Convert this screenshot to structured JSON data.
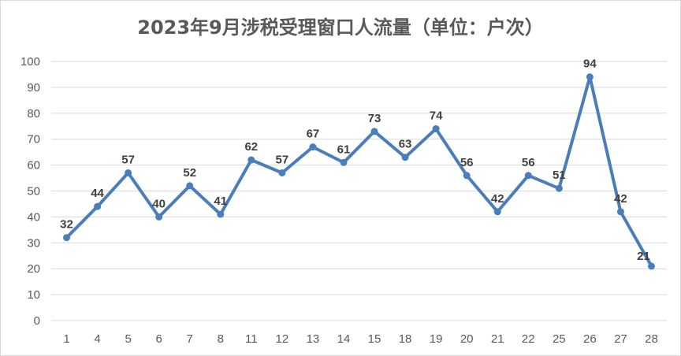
{
  "chart_data": {
    "type": "line",
    "title": "2023年9月涉税受理窗口人流量（单位：户次）",
    "xlabel": "",
    "ylabel": "",
    "categories": [
      "1",
      "4",
      "5",
      "6",
      "7",
      "8",
      "11",
      "12",
      "13",
      "14",
      "15",
      "18",
      "19",
      "20",
      "21",
      "22",
      "25",
      "26",
      "27",
      "28"
    ],
    "series": [
      {
        "values": [
          32,
          44,
          57,
          40,
          52,
          41,
          62,
          57,
          67,
          61,
          73,
          63,
          74,
          56,
          42,
          56,
          51,
          94,
          42,
          21
        ]
      }
    ],
    "ylim": [
      0,
      100
    ],
    "yticks": [
      0,
      10,
      20,
      30,
      40,
      50,
      60,
      70,
      80,
      90,
      100
    ],
    "grid": true,
    "legend": "none",
    "colors": {
      "line": "#4a7ebb",
      "grid": "#d9d9d9",
      "text": "#595959"
    }
  }
}
